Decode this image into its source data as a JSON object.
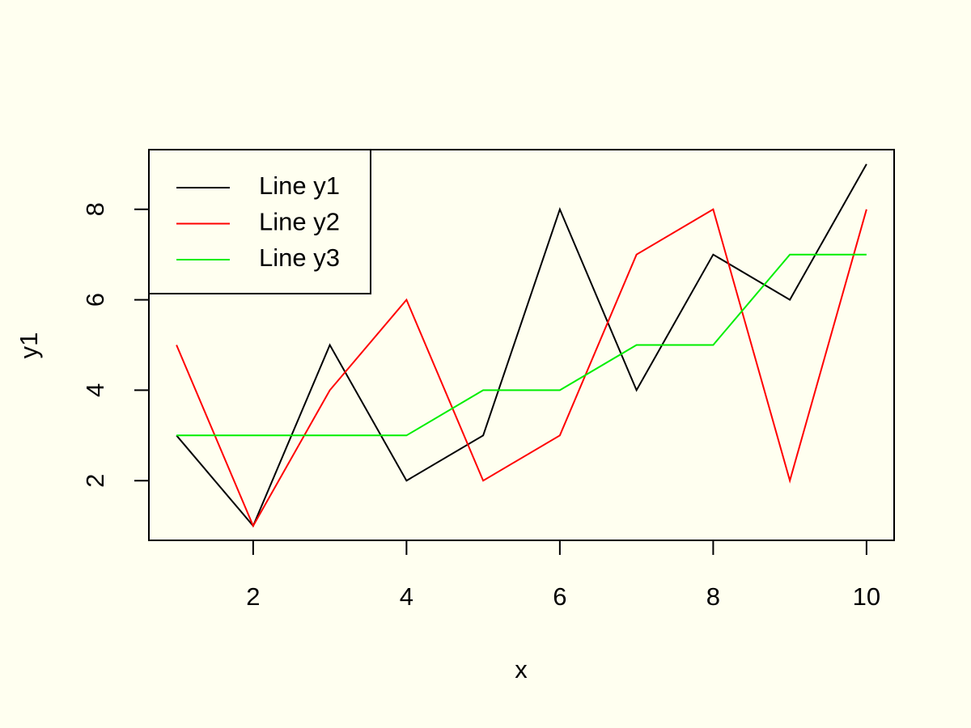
{
  "chart_data": {
    "type": "line",
    "x": [
      1,
      2,
      3,
      4,
      5,
      6,
      7,
      8,
      9,
      10
    ],
    "series": [
      {
        "name": "Line y1",
        "color": "#000000",
        "values": [
          3,
          1,
          5,
          2,
          3,
          8,
          4,
          7,
          6,
          9
        ]
      },
      {
        "name": "Line y2",
        "color": "#ff0000",
        "values": [
          5,
          1,
          4,
          6,
          2,
          3,
          7,
          8,
          2,
          8
        ]
      },
      {
        "name": "Line y3",
        "color": "#00ee00",
        "values": [
          3,
          3,
          3,
          3,
          4,
          4,
          5,
          5,
          7,
          7
        ]
      }
    ],
    "x_label": "x",
    "y_label": "y1",
    "xlim": [
      0.64,
      10.36
    ],
    "ylim": [
      0.68,
      9.32
    ],
    "xticks": [
      2,
      4,
      6,
      8,
      10
    ],
    "yticks": [
      2,
      4,
      6,
      8
    ],
    "legend": "top-left"
  }
}
